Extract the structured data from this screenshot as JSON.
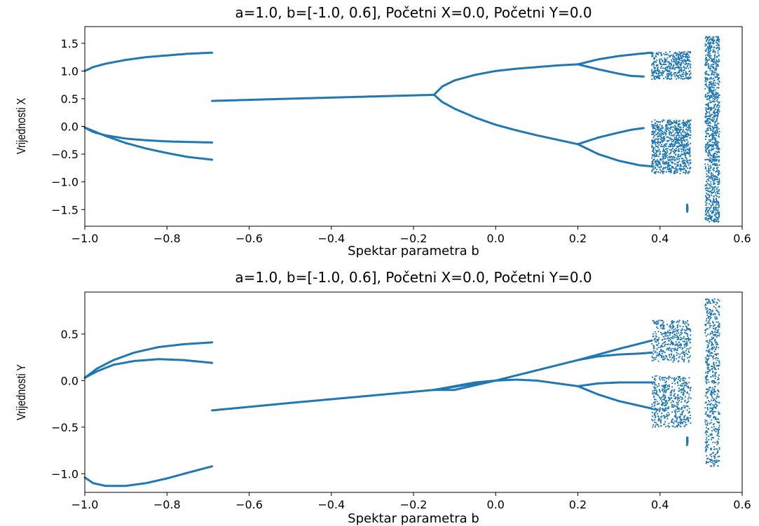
{
  "chart_data": [
    {
      "type": "scatter",
      "title": "a=1.0, b=[-1.0, 0.6], Početni X=0.0, Početni Y=0.0",
      "xlabel": "Spektar parametra b",
      "ylabel": "Vrijednosti X",
      "xlim": [
        -1.0,
        0.6
      ],
      "ylim": [
        -1.8,
        1.8
      ],
      "xticks": [
        -1.0,
        -0.8,
        -0.6,
        -0.4,
        -0.2,
        0.0,
        0.2,
        0.4,
        0.6
      ],
      "xtick_labels": [
        "−1.0",
        "−0.8",
        "−0.6",
        "−0.4",
        "−0.2",
        "0.0",
        "0.2",
        "0.4",
        "0.6"
      ],
      "yticks": [
        1.5,
        1.0,
        0.5,
        0.0,
        -0.5,
        -1.0,
        -1.5
      ],
      "ytick_labels": [
        "1.5",
        "1.0",
        "0.5",
        "0.0",
        "−0.5",
        "−1.0",
        "−1.5"
      ],
      "grid": false,
      "color": "#1f77b4",
      "branches": [
        {
          "x": [
            -1.0,
            -0.98,
            -0.95,
            -0.9,
            -0.85,
            -0.8,
            -0.75,
            -0.69
          ],
          "y": [
            1.0,
            1.07,
            1.13,
            1.2,
            1.25,
            1.28,
            1.31,
            1.33
          ]
        },
        {
          "x": [
            -1.0,
            -0.98,
            -0.95,
            -0.9,
            -0.85,
            -0.8,
            -0.75,
            -0.69
          ],
          "y": [
            -0.02,
            -0.1,
            -0.16,
            -0.22,
            -0.25,
            -0.27,
            -0.28,
            -0.29
          ]
        },
        {
          "x": [
            -1.0,
            -0.98,
            -0.95,
            -0.9,
            -0.85,
            -0.8,
            -0.75,
            -0.69
          ],
          "y": [
            -0.02,
            -0.08,
            -0.17,
            -0.3,
            -0.4,
            -0.48,
            -0.55,
            -0.6
          ]
        },
        {
          "x": [
            -0.69,
            -0.5,
            -0.3,
            -0.15
          ],
          "y": [
            0.46,
            0.5,
            0.54,
            0.57
          ]
        },
        {
          "x": [
            -0.15,
            -0.13,
            -0.1,
            -0.05,
            0.0,
            0.05,
            0.1,
            0.15,
            0.2
          ],
          "y": [
            0.57,
            0.72,
            0.83,
            0.93,
            1.0,
            1.04,
            1.07,
            1.1,
            1.12
          ]
        },
        {
          "x": [
            -0.15,
            -0.13,
            -0.1,
            -0.05,
            0.0,
            0.05,
            0.1,
            0.15,
            0.2
          ],
          "y": [
            0.57,
            0.44,
            0.32,
            0.16,
            0.03,
            -0.07,
            -0.16,
            -0.24,
            -0.32
          ]
        },
        {
          "x": [
            0.2,
            0.25,
            0.3,
            0.35,
            0.38
          ],
          "y": [
            1.12,
            1.21,
            1.27,
            1.31,
            1.33
          ]
        },
        {
          "x": [
            0.2,
            0.25,
            0.3,
            0.33,
            0.36
          ],
          "y": [
            1.12,
            1.03,
            0.95,
            0.91,
            0.9
          ]
        },
        {
          "x": [
            0.2,
            0.25,
            0.3,
            0.33,
            0.36
          ],
          "y": [
            -0.32,
            -0.2,
            -0.11,
            -0.06,
            -0.03
          ]
        },
        {
          "x": [
            0.2,
            0.25,
            0.3,
            0.35,
            0.38
          ],
          "y": [
            -0.32,
            -0.5,
            -0.62,
            -0.7,
            -0.72
          ]
        }
      ],
      "chaotic_bands": [
        {
          "x": [
            0.38,
            0.475
          ],
          "y": [
            0.85,
            1.35
          ]
        },
        {
          "x": [
            0.38,
            0.475
          ],
          "y": [
            -0.85,
            0.12
          ]
        },
        {
          "x": [
            0.465,
            0.468
          ],
          "y": [
            -1.55,
            -1.4
          ]
        },
        {
          "x": [
            0.51,
            0.545
          ],
          "y": [
            -1.72,
            1.62
          ]
        }
      ]
    },
    {
      "type": "scatter",
      "title": "a=1.0, b=[-1.0, 0.6], Početni X=0.0, Početni Y=0.0",
      "xlabel": "Spektar parametra b",
      "ylabel": "Vrijednosti Y",
      "xlim": [
        -1.0,
        0.6
      ],
      "ylim": [
        -1.2,
        0.95
      ],
      "xticks": [
        -1.0,
        -0.8,
        -0.6,
        -0.4,
        -0.2,
        0.0,
        0.2,
        0.4,
        0.6
      ],
      "xtick_labels": [
        "−1.0",
        "−0.8",
        "−0.6",
        "−0.4",
        "−0.2",
        "0.0",
        "0.2",
        "0.4",
        "0.6"
      ],
      "yticks": [
        0.5,
        0.0,
        -0.5,
        -1.0
      ],
      "ytick_labels": [
        "0.5",
        "0.0",
        "−0.5",
        "−1.0"
      ],
      "grid": false,
      "color": "#1f77b4",
      "branches": [
        {
          "x": [
            -1.0,
            -0.97,
            -0.93,
            -0.88,
            -0.82,
            -0.76,
            -0.69
          ],
          "y": [
            0.03,
            0.13,
            0.22,
            0.3,
            0.36,
            0.39,
            0.41
          ]
        },
        {
          "x": [
            -1.0,
            -0.97,
            -0.93,
            -0.88,
            -0.82,
            -0.76,
            -0.69
          ],
          "y": [
            0.03,
            0.1,
            0.17,
            0.21,
            0.23,
            0.22,
            0.19
          ]
        },
        {
          "x": [
            -1.0,
            -0.98,
            -0.95,
            -0.9,
            -0.85,
            -0.8,
            -0.75,
            -0.69
          ],
          "y": [
            -1.04,
            -1.1,
            -1.13,
            -1.13,
            -1.1,
            -1.05,
            -0.99,
            -0.92
          ]
        },
        {
          "x": [
            -0.69,
            -0.5,
            -0.3,
            -0.15,
            0.0
          ],
          "y": [
            -0.32,
            -0.24,
            -0.16,
            -0.1,
            0.0
          ]
        },
        {
          "x": [
            -0.15,
            -0.1,
            -0.05,
            0.0,
            0.05,
            0.1,
            0.15,
            0.2
          ],
          "y": [
            -0.1,
            -0.06,
            -0.02,
            0.0,
            0.01,
            0.0,
            -0.03,
            -0.06
          ]
        },
        {
          "x": [
            -0.15,
            -0.1,
            -0.05,
            0.0
          ],
          "y": [
            -0.1,
            -0.1,
            -0.05,
            0.0
          ]
        },
        {
          "x": [
            0.0,
            0.1,
            0.2,
            0.3,
            0.38
          ],
          "y": [
            0.0,
            0.11,
            0.22,
            0.34,
            0.43
          ]
        },
        {
          "x": [
            0.2,
            0.25,
            0.3,
            0.35,
            0.38
          ],
          "y": [
            0.22,
            0.26,
            0.28,
            0.29,
            0.3
          ]
        },
        {
          "x": [
            0.2,
            0.25,
            0.3,
            0.35,
            0.38
          ],
          "y": [
            -0.06,
            -0.03,
            -0.02,
            -0.02,
            -0.02
          ]
        },
        {
          "x": [
            0.2,
            0.25,
            0.3,
            0.35,
            0.38
          ],
          "y": [
            -0.06,
            -0.15,
            -0.22,
            -0.27,
            -0.3
          ]
        }
      ],
      "chaotic_bands": [
        {
          "x": [
            0.38,
            0.475
          ],
          "y": [
            0.2,
            0.65
          ]
        },
        {
          "x": [
            0.38,
            0.475
          ],
          "y": [
            -0.5,
            0.05
          ]
        },
        {
          "x": [
            0.465,
            0.468
          ],
          "y": [
            -0.7,
            -0.6
          ]
        },
        {
          "x": [
            0.51,
            0.545
          ],
          "y": [
            -0.92,
            0.88
          ]
        }
      ]
    }
  ]
}
